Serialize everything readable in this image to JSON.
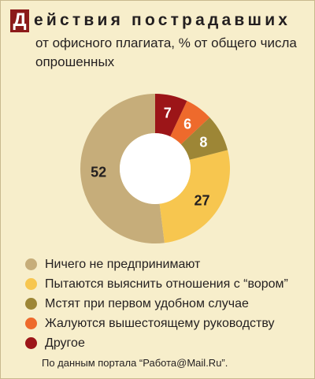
{
  "header": {
    "title_initial": "Д",
    "title_rest": "ействия пострадавших",
    "subtitle": "от офисного плагиата, % от общего числа опрошенных"
  },
  "chart_data": {
    "type": "pie",
    "donut": true,
    "categories": [
      "Ничего не предпринимают",
      "Пытаются выяснить отношения с “вором”",
      "Мстят при первом удобном случае",
      "Жалуются вышестоящему руководству",
      "Другое"
    ],
    "values": [
      52,
      27,
      8,
      6,
      7
    ],
    "colors": [
      "#c6ad7a",
      "#f7c64f",
      "#9d8636",
      "#ee6a2c",
      "#9c1518"
    ],
    "label_colors": [
      "#231f20",
      "#231f20",
      "#ffffff",
      "#ffffff",
      "#ffffff"
    ],
    "title": "Действия пострадавших",
    "subtitle": "от офисного плагиата, % от общего числа опрошенных",
    "legend_placement": "bottom"
  },
  "source": "По данным портала “Работа@Mail.Ru”."
}
